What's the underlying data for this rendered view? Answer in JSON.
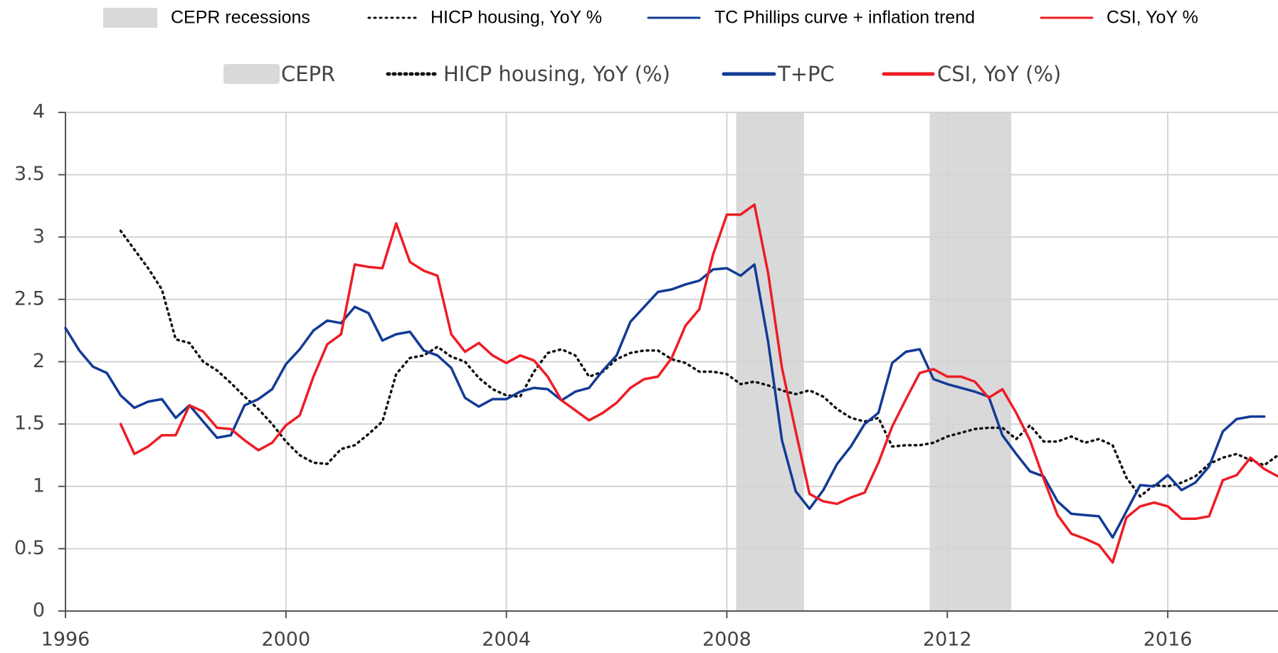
{
  "chart_data": {
    "type": "line",
    "overlay_legend": [
      "CEPR recessions",
      "HICP housing, YoY %",
      "TC Phillips curve + inflation trend",
      "CSI, YoY %"
    ],
    "recession": {
      "name": "CEPR",
      "color": "#d9d9d9",
      "spans": [
        [
          2008.17,
          2009.4
        ],
        [
          2011.68,
          2013.16
        ]
      ]
    },
    "x": [
      1996,
      1996.25,
      1996.5,
      1996.75,
      1997,
      1997.25,
      1997.5,
      1997.75,
      1998,
      1998.25,
      1998.5,
      1998.75,
      1999,
      1999.25,
      1999.5,
      1999.75,
      2000,
      2000.25,
      2000.5,
      2000.75,
      2001,
      2001.25,
      2001.5,
      2001.75,
      2002,
      2002.25,
      2002.5,
      2002.75,
      2003,
      2003.25,
      2003.5,
      2003.75,
      2004,
      2004.25,
      2004.5,
      2004.75,
      2005,
      2005.25,
      2005.5,
      2005.75,
      2006,
      2006.25,
      2006.5,
      2006.75,
      2007,
      2007.25,
      2007.5,
      2007.75,
      2008,
      2008.25,
      2008.5,
      2008.75,
      2009,
      2009.25,
      2009.5,
      2009.75,
      2010,
      2010.25,
      2010.5,
      2010.75,
      2011,
      2011.25,
      2011.5,
      2011.75,
      2012,
      2012.25,
      2012.5,
      2012.75,
      2013,
      2013.25,
      2013.5,
      2013.75,
      2014,
      2014.25,
      2014.5,
      2014.75,
      2015,
      2015.25,
      2015.5,
      2015.75,
      2016,
      2016.25,
      2016.5,
      2016.75,
      2017,
      2017.25,
      2017.5,
      2017.75,
      2018
    ],
    "series": [
      {
        "name": "HICP housing, YoY (%)",
        "color": "#111111",
        "style": "dotted",
        "values": [
          null,
          null,
          null,
          null,
          3.05,
          2.9,
          2.75,
          2.58,
          2.18,
          2.15,
          2.0,
          1.93,
          1.83,
          1.72,
          1.62,
          1.5,
          1.36,
          1.25,
          1.19,
          1.18,
          1.3,
          1.33,
          1.42,
          1.52,
          1.9,
          2.03,
          2.05,
          2.12,
          2.04,
          2.0,
          1.87,
          1.78,
          1.73,
          1.72,
          1.92,
          2.07,
          2.1,
          2.05,
          1.88,
          1.92,
          2.02,
          2.07,
          2.09,
          2.09,
          2.02,
          1.99,
          1.92,
          1.92,
          1.9,
          1.82,
          1.84,
          1.81,
          1.77,
          1.74,
          1.77,
          1.72,
          1.62,
          1.55,
          1.52,
          1.55,
          1.32,
          1.33,
          1.33,
          1.35,
          1.4,
          1.43,
          1.46,
          1.47,
          1.47,
          1.38,
          1.49,
          1.36,
          1.36,
          1.4,
          1.35,
          1.38,
          1.33,
          1.07,
          0.92,
          1.01,
          1.0,
          1.03,
          1.08,
          1.18,
          1.23,
          1.26,
          1.21,
          1.17,
          1.25
        ]
      },
      {
        "name": "T+PC",
        "color": "#123b95",
        "style": "solid",
        "values": [
          2.27,
          2.09,
          1.96,
          1.91,
          1.73,
          1.63,
          1.68,
          1.7,
          1.55,
          1.65,
          1.52,
          1.39,
          1.41,
          1.65,
          1.7,
          1.78,
          1.98,
          2.1,
          2.25,
          2.33,
          2.31,
          2.44,
          2.39,
          2.17,
          2.22,
          2.24,
          2.09,
          2.05,
          1.95,
          1.71,
          1.64,
          1.7,
          1.7,
          1.76,
          1.79,
          1.78,
          1.69,
          1.76,
          1.79,
          1.93,
          2.05,
          2.32,
          2.44,
          2.56,
          2.58,
          2.62,
          2.65,
          2.74,
          2.75,
          2.69,
          2.78,
          2.16,
          1.37,
          0.96,
          0.82,
          0.97,
          1.18,
          1.32,
          1.5,
          1.59,
          1.99,
          2.08,
          2.1,
          1.86,
          1.82,
          1.79,
          1.76,
          1.72,
          1.41,
          1.26,
          1.12,
          1.08,
          0.88,
          0.78,
          0.77,
          0.76,
          0.59,
          0.8,
          1.01,
          1.0,
          1.09,
          0.97,
          1.03,
          1.16,
          1.44,
          1.54,
          1.56,
          1.56,
          null
        ]
      },
      {
        "name": "CSI, YoY (%)",
        "color": "#ee1c25",
        "style": "solid",
        "values": [
          null,
          null,
          null,
          null,
          1.5,
          1.26,
          1.32,
          1.41,
          1.41,
          1.65,
          1.6,
          1.47,
          1.46,
          1.37,
          1.29,
          1.35,
          1.49,
          1.57,
          1.88,
          2.14,
          2.22,
          2.78,
          2.76,
          2.75,
          3.11,
          2.8,
          2.73,
          2.69,
          2.22,
          2.08,
          2.15,
          2.05,
          1.99,
          2.05,
          2.01,
          1.88,
          1.69,
          1.61,
          1.53,
          1.59,
          1.67,
          1.79,
          1.86,
          1.88,
          2.03,
          2.29,
          2.42,
          2.86,
          3.18,
          3.18,
          3.26,
          2.71,
          1.95,
          1.44,
          0.94,
          0.88,
          0.86,
          0.91,
          0.95,
          1.19,
          1.48,
          1.7,
          1.91,
          1.94,
          1.88,
          1.88,
          1.84,
          1.71,
          1.78,
          1.59,
          1.37,
          1.06,
          0.77,
          0.62,
          0.58,
          0.53,
          0.39,
          0.75,
          0.84,
          0.87,
          0.84,
          0.74,
          0.74,
          0.76,
          1.05,
          1.09,
          1.23,
          1.14,
          1.08
        ]
      }
    ],
    "xlim": [
      1996,
      2018
    ],
    "xticks": [
      1996,
      2000,
      2004,
      2008,
      2012,
      2016
    ],
    "ylim": [
      0,
      4
    ],
    "yticks": [
      0,
      0.5,
      1,
      1.5,
      2,
      2.5,
      3,
      3.5,
      4
    ],
    "grid": true
  }
}
